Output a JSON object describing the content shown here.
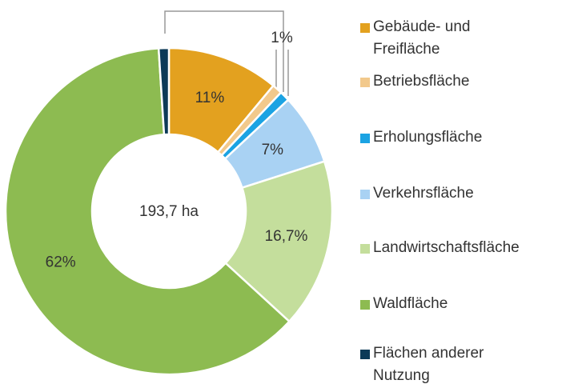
{
  "chart_data": {
    "type": "pie",
    "center_label": "193,7 ha",
    "categories": [
      "Gebäude- und Freifläche",
      "Betriebsfläche",
      "Erholungsfläche",
      "Verkehrsfläche",
      "Landwirtschaftsfläche",
      "Waldfläche",
      "Flächen anderer Nutzung"
    ],
    "values": [
      11,
      1,
      1,
      7,
      16.7,
      62,
      1
    ],
    "value_labels": [
      "11%",
      null,
      "1%",
      "7%",
      "16,7%",
      "62%",
      null
    ],
    "colors": [
      "#e3a11f",
      "#f2c98c",
      "#1ba3e3",
      "#a9d2f3",
      "#c4de9c",
      "#8dbb51",
      "#0c3a57"
    ],
    "legend": "right"
  }
}
